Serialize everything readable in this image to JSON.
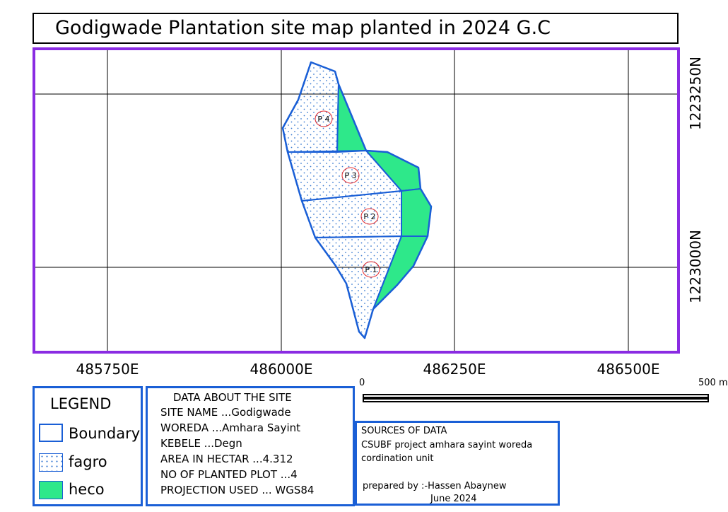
{
  "map": {
    "title": "Godigwade Plantation site map planted in 2024 G.C",
    "easting_labels": [
      "485750E",
      "486000E",
      "486250E",
      "486500E"
    ],
    "northing_labels": [
      "1223250N",
      "1223000N"
    ],
    "plots": [
      {
        "id": "plot-1",
        "label": "P 1"
      },
      {
        "id": "plot-2",
        "label": "P 2"
      },
      {
        "id": "plot-3",
        "label": "P 3"
      },
      {
        "id": "plot-4",
        "label": "P 4"
      }
    ],
    "colors": {
      "frame": "#8a2be2",
      "boundary": "#1a5fd6",
      "heco": "#2ee88a",
      "fagro_fill": "#ffffff",
      "fagro_dot": "#3a7ad0",
      "plot_label_ring": "#e0262b",
      "grid": "#000000"
    }
  },
  "legend": {
    "title": "LEGEND",
    "items": [
      {
        "label": "Boundary",
        "icon": "boundary-swatch"
      },
      {
        "label": "fagro",
        "icon": "dotted-swatch"
      },
      {
        "label": "heco",
        "icon": "green-swatch"
      }
    ]
  },
  "site_info": {
    "title": "DATA ABOUT THE SITE",
    "lines": [
      "SITE NAME ...Godigwade",
      "WOREDA ...Amhara Sayint",
      "KEBELE ...Degn",
      "AREA IN HECTAR ...4.312",
      "NO OF PLANTED PLOT ...4",
      "PROJECTION USED ... WGS84"
    ]
  },
  "scale": {
    "start": "0",
    "end": "500 m"
  },
  "sources": {
    "title": "SOURCES OF DATA",
    "line1": " CSUBF project amhara sayint woreda",
    "line2": "cordination unit",
    "prepared": "prepared by :-Hassen Abaynew",
    "date": "June 2024"
  }
}
